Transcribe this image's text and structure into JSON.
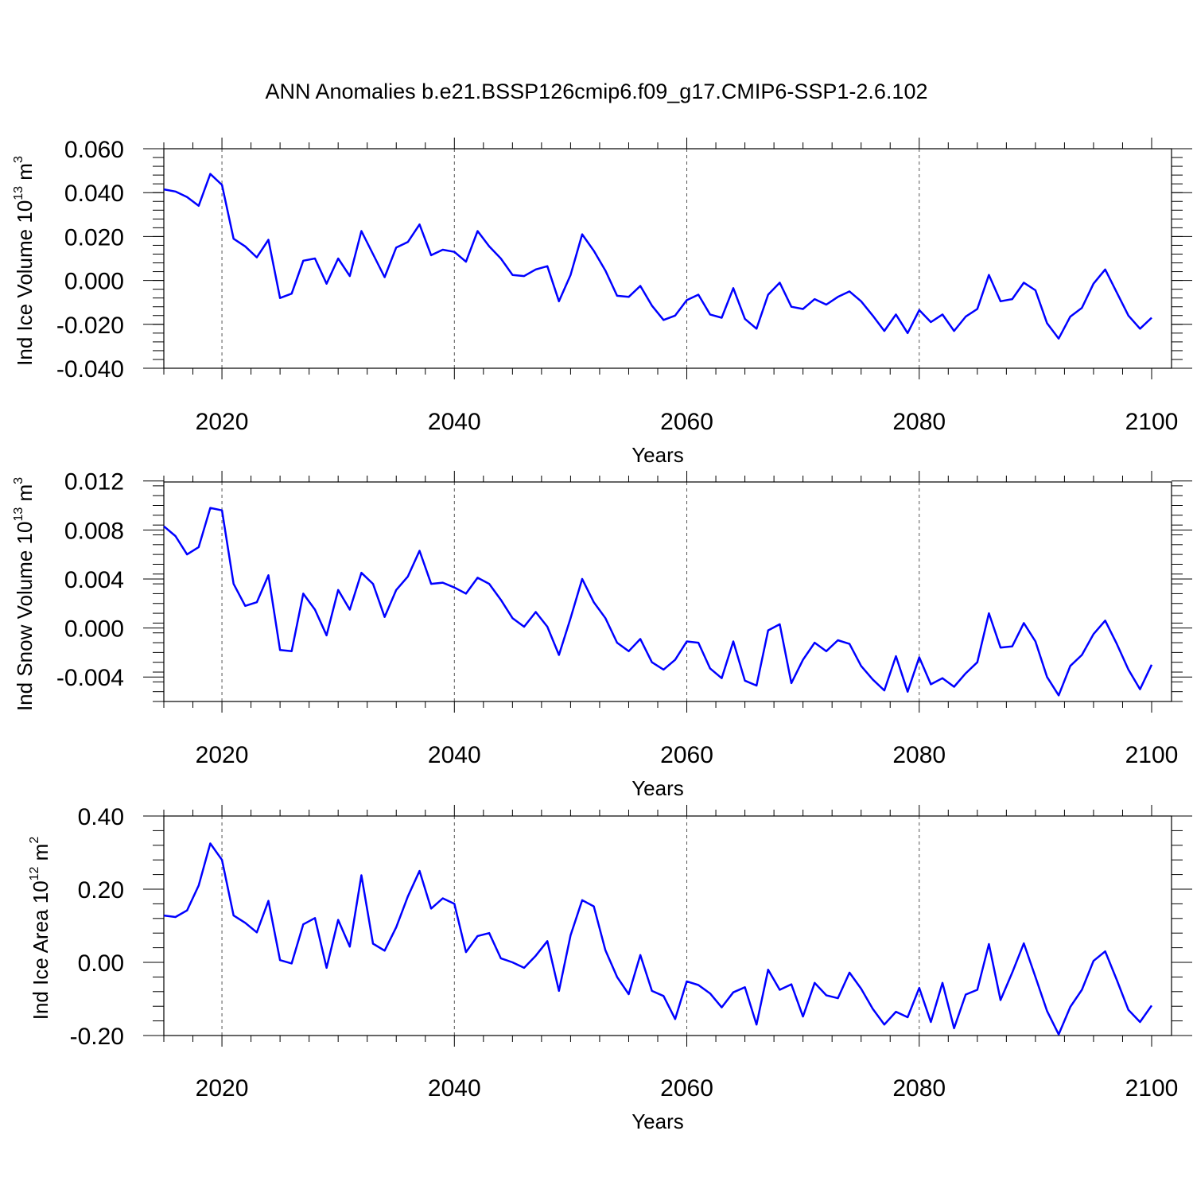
{
  "title": "ANN Anomalies b.e21.BSSP126cmip6.f09_g17.CMIP6-SSP1-2.6.102",
  "colors": {
    "line": "#0000ff",
    "axis": "#000000",
    "grid": "#555555"
  },
  "chart_data": [
    {
      "type": "line",
      "id": "ice-volume",
      "ylabel_main": "Ind Ice Volume 10",
      "ylabel_exp": "13",
      "ylabel_unit": " m",
      "ylabel_unit_exp": "3",
      "xlabel": "Years",
      "xlim": [
        2015,
        2100
      ],
      "ylim": [
        -0.04,
        0.06
      ],
      "yticks": [
        -0.04,
        -0.02,
        0.0,
        0.02,
        0.04,
        0.06
      ],
      "ytick_labels": [
        "-0.040",
        "-0.020",
        "0.000",
        "0.020",
        "0.040",
        "0.060"
      ],
      "xticks": [
        2020,
        2040,
        2060,
        2080,
        2100
      ],
      "xtick_labels": [
        "2020",
        "2040",
        "2060",
        "2080",
        "2100"
      ],
      "grid_x": [
        2020,
        2040,
        2060,
        2080
      ],
      "x_start": 2015,
      "values": [
        0.0415,
        0.0405,
        0.038,
        0.034,
        0.0485,
        0.0435,
        0.019,
        0.0155,
        0.0105,
        0.0185,
        -0.008,
        -0.006,
        0.009,
        0.01,
        -0.0015,
        0.01,
        0.002,
        0.0225,
        0.012,
        0.0015,
        0.015,
        0.0175,
        0.0255,
        0.0115,
        0.014,
        0.013,
        0.0085,
        0.0225,
        0.0155,
        0.01,
        0.0025,
        0.002,
        0.005,
        0.0065,
        -0.0095,
        0.0025,
        0.021,
        0.0135,
        0.0045,
        -0.007,
        -0.0075,
        -0.0025,
        -0.0115,
        -0.018,
        -0.016,
        -0.009,
        -0.0065,
        -0.0155,
        -0.017,
        -0.0035,
        -0.0175,
        -0.022,
        -0.0065,
        -0.001,
        -0.012,
        -0.013,
        -0.0085,
        -0.011,
        -0.0075,
        -0.005,
        -0.0095,
        -0.016,
        -0.023,
        -0.0155,
        -0.024,
        -0.0135,
        -0.019,
        -0.0155,
        -0.023,
        -0.0165,
        -0.013,
        0.0025,
        -0.0095,
        -0.0085,
        -0.001,
        -0.0045,
        -0.0195,
        -0.0265,
        -0.0165,
        -0.0125,
        -0.0015,
        0.005,
        -0.0055,
        -0.016,
        -0.022,
        -0.017
      ]
    },
    {
      "type": "line",
      "id": "snow-volume",
      "ylabel_main": "Ind Snow Volume 10",
      "ylabel_exp": "13",
      "ylabel_unit": " m",
      "ylabel_unit_exp": "3",
      "xlabel": "Years",
      "xlim": [
        2015,
        2100
      ],
      "ylim": [
        -0.006,
        0.0125
      ],
      "yticks": [
        -0.004,
        0.0,
        0.004,
        0.008,
        0.012
      ],
      "ytick_labels": [
        "-0.004",
        "0.000",
        "0.004",
        "0.008",
        "0.012"
      ],
      "xticks": [
        2020,
        2040,
        2060,
        2080,
        2100
      ],
      "xtick_labels": [
        "2020",
        "2040",
        "2060",
        "2080",
        "2100"
      ],
      "grid_x": [
        2020,
        2040,
        2060,
        2080
      ],
      "x_start": 2015,
      "values": [
        0.0083,
        0.0075,
        0.006,
        0.0066,
        0.0098,
        0.0096,
        0.0036,
        0.0018,
        0.0021,
        0.0043,
        -0.0018,
        -0.0019,
        0.0028,
        0.0015,
        -0.0006,
        0.0031,
        0.0015,
        0.0045,
        0.0036,
        0.0009,
        0.0031,
        0.0042,
        0.0063,
        0.0036,
        0.0037,
        0.0033,
        0.0028,
        0.0041,
        0.0036,
        0.0023,
        0.0008,
        0.0001,
        0.0013,
        0.0001,
        -0.0022,
        0.0008,
        0.004,
        0.0021,
        0.0008,
        -0.0012,
        -0.0019,
        -0.0009,
        -0.0028,
        -0.0034,
        -0.0026,
        -0.0011,
        -0.0012,
        -0.0033,
        -0.0041,
        -0.0011,
        -0.0043,
        -0.0047,
        -0.0002,
        0.0003,
        -0.0045,
        -0.0026,
        -0.0012,
        -0.0019,
        -0.001,
        -0.0013,
        -0.0031,
        -0.0042,
        -0.0051,
        -0.0023,
        -0.0052,
        -0.0024,
        -0.0046,
        -0.0041,
        -0.0048,
        -0.0037,
        -0.0028,
        0.0012,
        -0.0016,
        -0.0015,
        0.0004,
        -0.0011,
        -0.004,
        -0.0055,
        -0.0031,
        -0.0022,
        -0.0005,
        0.0006,
        -0.0013,
        -0.0034,
        -0.005,
        -0.003
      ]
    },
    {
      "type": "line",
      "id": "ice-area",
      "ylabel_main": "Ind Ice Area 10",
      "ylabel_exp": "12",
      "ylabel_unit": " m",
      "ylabel_unit_exp": "2",
      "xlabel": "Years",
      "xlim": [
        2015,
        2100
      ],
      "ylim": [
        -0.2,
        0.4
      ],
      "yticks": [
        -0.2,
        0.0,
        0.2,
        0.4
      ],
      "ytick_labels": [
        "-0.20",
        "0.00",
        "0.20",
        "0.40"
      ],
      "xticks": [
        2020,
        2040,
        2060,
        2080,
        2100
      ],
      "xtick_labels": [
        "2020",
        "2040",
        "2060",
        "2080",
        "2100"
      ],
      "grid_x": [
        2020,
        2040,
        2060,
        2080
      ],
      "x_start": 2015,
      "values": [
        0.128,
        0.124,
        0.142,
        0.21,
        0.325,
        0.28,
        0.128,
        0.108,
        0.082,
        0.168,
        0.006,
        -0.003,
        0.104,
        0.121,
        -0.015,
        0.116,
        0.043,
        0.238,
        0.051,
        0.032,
        0.096,
        0.18,
        0.25,
        0.147,
        0.175,
        0.16,
        0.028,
        0.072,
        0.08,
        0.011,
        0.0,
        -0.015,
        0.018,
        0.058,
        -0.078,
        0.074,
        0.17,
        0.153,
        0.033,
        -0.04,
        -0.087,
        0.02,
        -0.078,
        -0.092,
        -0.155,
        -0.052,
        -0.062,
        -0.085,
        -0.123,
        -0.082,
        -0.068,
        -0.17,
        -0.02,
        -0.075,
        -0.06,
        -0.148,
        -0.056,
        -0.09,
        -0.098,
        -0.028,
        -0.072,
        -0.127,
        -0.17,
        -0.135,
        -0.15,
        -0.07,
        -0.163,
        -0.056,
        -0.18,
        -0.088,
        -0.075,
        0.05,
        -0.103,
        -0.028,
        0.052,
        -0.04,
        -0.133,
        -0.197,
        -0.122,
        -0.075,
        0.004,
        0.03,
        -0.048,
        -0.13,
        -0.163,
        -0.118
      ]
    }
  ]
}
